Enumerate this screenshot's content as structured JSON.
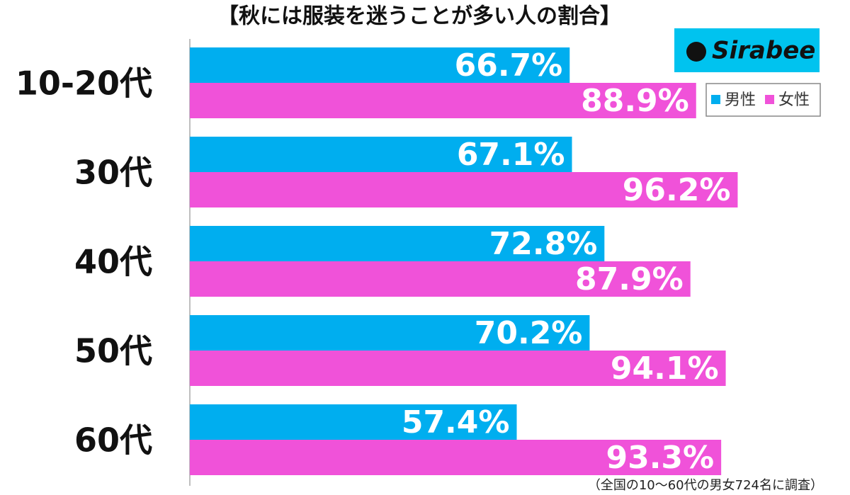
{
  "chart_data": {
    "type": "hbar",
    "title": "【秋には服装を迷うことが多い人の割合】",
    "logo": "Sirabee",
    "footnote": "（全国の10〜60代の男女724名に調査）",
    "categories": [
      "10-20代",
      "30代",
      "40代",
      "50代",
      "60代"
    ],
    "series": [
      {
        "name": "男性",
        "color": "#00aeef",
        "values": [
          66.7,
          67.1,
          72.8,
          70.2,
          57.4
        ],
        "value_labels": [
          "66.7%",
          "67.1%",
          "72.8%",
          "70.2%",
          "57.4%"
        ]
      },
      {
        "name": "女性",
        "color": "#f052d9",
        "values": [
          88.9,
          96.2,
          87.9,
          94.1,
          93.3
        ],
        "value_labels": [
          "88.9%",
          "96.2%",
          "87.9%",
          "94.1%",
          "93.3%"
        ]
      }
    ],
    "xlim": [
      0,
      100
    ]
  }
}
